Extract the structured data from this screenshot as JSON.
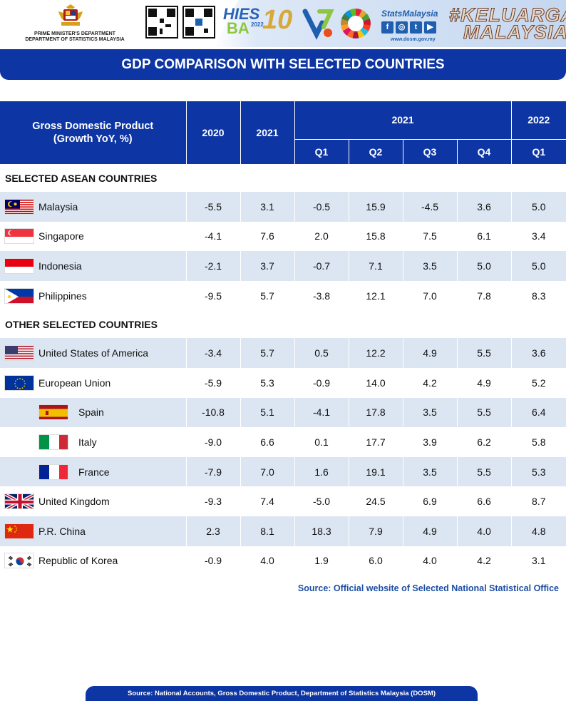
{
  "header": {
    "department_line1": "PRIME MINISTER'S DEPARTMENT",
    "department_line2": "DEPARTMENT OF STATISTICS MALAYSIA",
    "hies_logo_top": "HIES",
    "hies_logo_bottom": "BA",
    "hies_logo_year": "2022",
    "anniversary_logo": "10",
    "stats_name": "StatsMalaysia",
    "stats_url": "www.dosm.gov.my",
    "social_icons": [
      "f",
      "◎",
      "t",
      "▶"
    ],
    "campaign_line1": "#KELUARGA",
    "campaign_line2": "MALAYSIA"
  },
  "title": "GDP COMPARISON WITH SELECTED COUNTRIES",
  "table": {
    "header_label_line1": "Gross Domestic Product",
    "header_label_line2": "(Growth YoY, %)",
    "col_2020": "2020",
    "col_2021": "2021",
    "group_2021": "2021",
    "group_2022": "2022",
    "quarters_2021": [
      "Q1",
      "Q2",
      "Q3",
      "Q4"
    ],
    "quarters_2022": [
      "Q1"
    ],
    "sections": [
      {
        "title": "SELECTED ASEAN COUNTRIES",
        "rows": [
          {
            "country": "Malaysia",
            "flag": "malaysia-flag-icon",
            "values": [
              "-5.5",
              "3.1",
              "-0.5",
              "15.9",
              "-4.5",
              "3.6",
              "5.0"
            ]
          },
          {
            "country": "Singapore",
            "flag": "singapore-flag-icon",
            "values": [
              "-4.1",
              "7.6",
              "2.0",
              "15.8",
              "7.5",
              "6.1",
              "3.4"
            ]
          },
          {
            "country": "Indonesia",
            "flag": "indonesia-flag-icon",
            "values": [
              "-2.1",
              "3.7",
              "-0.7",
              "7.1",
              "3.5",
              "5.0",
              "5.0"
            ]
          },
          {
            "country": "Philippines",
            "flag": "philippines-flag-icon",
            "values": [
              "-9.5",
              "5.7",
              "-3.8",
              "12.1",
              "7.0",
              "7.8",
              "8.3"
            ]
          }
        ]
      },
      {
        "title": "OTHER SELECTED COUNTRIES",
        "rows": [
          {
            "country": "United States of America",
            "flag": "usa-flag-icon",
            "values": [
              "-3.4",
              "5.7",
              "0.5",
              "12.2",
              "4.9",
              "5.5",
              "3.6"
            ]
          },
          {
            "country": "European Union",
            "flag": "eu-flag-icon",
            "values": [
              "-5.9",
              "5.3",
              "-0.9",
              "14.0",
              "4.2",
              "4.9",
              "5.2"
            ]
          },
          {
            "country": "Spain",
            "flag": "spain-flag-icon",
            "values": [
              "-10.8",
              "5.1",
              "-4.1",
              "17.8",
              "3.5",
              "5.5",
              "6.4"
            ]
          },
          {
            "country": "Italy",
            "flag": "italy-flag-icon",
            "values": [
              "-9.0",
              "6.6",
              "0.1",
              "17.7",
              "3.9",
              "6.2",
              "5.8"
            ]
          },
          {
            "country": "France",
            "flag": "france-flag-icon",
            "values": [
              "-7.9",
              "7.0",
              "1.6",
              "19.1",
              "3.5",
              "5.5",
              "5.3"
            ]
          },
          {
            "country": "United Kingdom",
            "flag": "uk-flag-icon",
            "values": [
              "-9.3",
              "7.4",
              "-5.0",
              "24.5",
              "6.9",
              "6.6",
              "8.7"
            ]
          },
          {
            "country": "P.R. China",
            "flag": "china-flag-icon",
            "values": [
              "2.3",
              "8.1",
              "18.3",
              "7.9",
              "4.9",
              "4.0",
              "4.8"
            ]
          },
          {
            "country": "Republic of Korea",
            "flag": "korea-flag-icon",
            "values": [
              "-0.9",
              "4.0",
              "1.9",
              "6.0",
              "4.0",
              "4.2",
              "3.1"
            ]
          }
        ]
      }
    ]
  },
  "source_note": "Source: Official website of Selected National Statistical Office",
  "footer_source": "Source: National Accounts, Gross Domestic Product, Department of Statistics Malaysia (DOSM)",
  "colors": {
    "primary_blue": "#0d36a4",
    "row_shade": "#dce6f2",
    "source_blue": "#1d4ea3"
  }
}
